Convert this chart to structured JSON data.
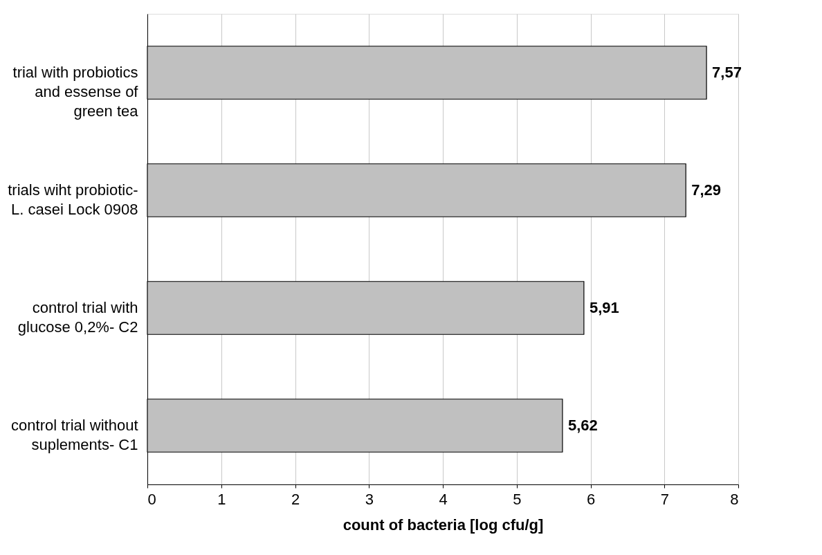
{
  "chart_data": {
    "type": "bar",
    "orientation": "horizontal",
    "xlabel": "count of bacteria [log cfu/g]",
    "categories": [
      "trial with probiotics\nand essense of\ngreen tea",
      "trials wiht probiotic-\nL. casei Lock 0908",
      "control trial with\nglucose 0,2%- C2",
      "control trial without\nsuplements- C1"
    ],
    "values": [
      7.57,
      7.29,
      5.91,
      5.62
    ],
    "value_labels": [
      "7,57",
      "7,29",
      "5,91",
      "5,62"
    ],
    "color": "#c0c0c0",
    "xlim": [
      0,
      8
    ],
    "xticks": [
      0,
      1,
      2,
      3,
      4,
      5,
      6,
      7,
      8
    ],
    "grid": "x"
  }
}
